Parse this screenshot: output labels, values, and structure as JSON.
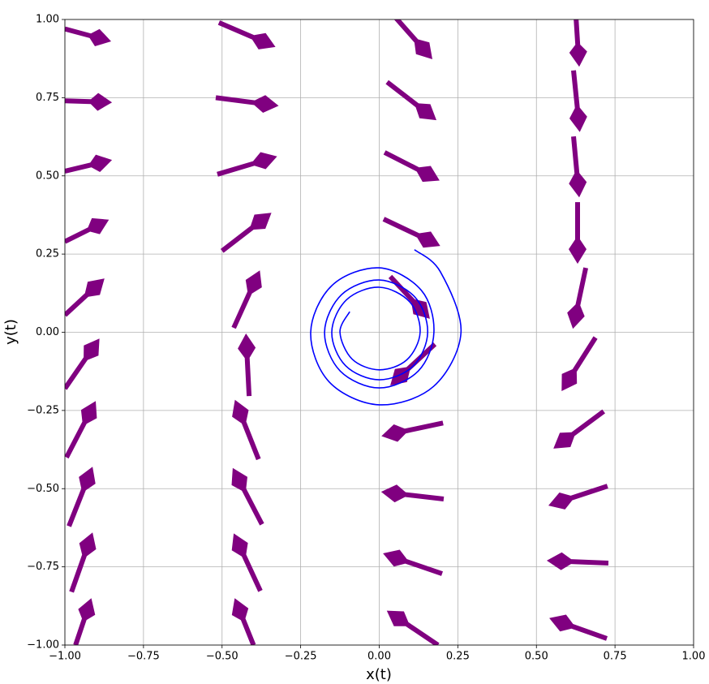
{
  "chart_data": {
    "type": "quiver",
    "xlabel": "x(t)",
    "ylabel": "y(t)",
    "xlim": [
      -1,
      1
    ],
    "ylim": [
      -1,
      1
    ],
    "xticks": [
      {
        "value": -1,
        "label": "−1.00"
      },
      {
        "value": -0.75,
        "label": "−0.75"
      },
      {
        "value": -0.5,
        "label": "−0.50"
      },
      {
        "value": -0.25,
        "label": "−0.25"
      },
      {
        "value": 0,
        "label": "0.00"
      },
      {
        "value": 0.25,
        "label": "0.25"
      },
      {
        "value": 0.5,
        "label": "0.50"
      },
      {
        "value": 0.75,
        "label": "0.75"
      },
      {
        "value": 1,
        "label": "1.00"
      }
    ],
    "yticks": [
      {
        "value": -1,
        "label": "−1.00"
      },
      {
        "value": -0.75,
        "label": "−0.75"
      },
      {
        "value": -0.5,
        "label": "−0.50"
      },
      {
        "value": -0.25,
        "label": "−0.25"
      },
      {
        "value": 0,
        "label": "0.00"
      },
      {
        "value": 0.25,
        "label": "0.25"
      },
      {
        "value": 0.5,
        "label": "0.50"
      },
      {
        "value": 0.75,
        "label": "0.75"
      },
      {
        "value": 1,
        "label": "1.00"
      }
    ],
    "grid": true,
    "arrows": {
      "color": "#800080",
      "x": [
        -1,
        -1,
        -1,
        -1,
        -1,
        -1,
        -0.995,
        -0.987,
        -0.979,
        -0.966,
        -0.51,
        -0.52,
        -0.515,
        -0.5,
        -0.463,
        -0.414,
        -0.384,
        -0.373,
        -0.378,
        -0.4,
        0.053,
        0.025,
        0.017,
        0.014,
        0.035,
        0.177,
        0.203,
        0.205,
        0.2,
        0.187,
        0.626,
        0.618,
        0.618,
        0.631,
        0.657,
        0.688,
        0.714,
        0.726,
        0.729,
        0.724
      ],
      "y": [
        0.97,
        0.74,
        0.515,
        0.29,
        0.055,
        -0.18,
        -0.4,
        -0.62,
        -0.83,
        -1.0,
        0.99,
        0.75,
        0.505,
        0.26,
        0.014,
        -0.204,
        -0.406,
        -0.614,
        -0.827,
        -1.0,
        1.005,
        0.8,
        0.575,
        0.362,
        0.178,
        -0.038,
        -0.29,
        -0.533,
        -0.772,
        -1.0,
        1.005,
        0.837,
        0.626,
        0.416,
        0.206,
        -0.017,
        -0.253,
        -0.492,
        -0.738,
        -0.979
      ],
      "u": [
        0.147,
        0.15,
        0.15,
        0.14,
        0.126,
        0.11,
        0.093,
        0.075,
        0.067,
        0.05,
        0.18,
        0.2,
        0.19,
        0.157,
        0.083,
        -0.01,
        -0.075,
        -0.093,
        -0.085,
        -0.06,
        0.116,
        0.157,
        0.175,
        0.18,
        0.126,
        -0.142,
        -0.196,
        -0.199,
        -0.188,
        -0.163,
        0.01,
        0.02,
        0.018,
        0,
        -0.041,
        -0.108,
        -0.16,
        -0.188,
        -0.196,
        -0.183
      ],
      "v": [
        -0.04,
        -0.005,
        0.036,
        0.07,
        0.117,
        0.16,
        0.18,
        0.19,
        0.19,
        0.15,
        -0.078,
        -0.026,
        0.057,
        0.122,
        0.184,
        0.2,
        0.19,
        0.18,
        0.184,
        0.15,
        -0.132,
        -0.122,
        -0.09,
        -0.086,
        -0.135,
        -0.132,
        -0.042,
        0.023,
        0.065,
        0.11,
        -0.156,
        -0.197,
        -0.195,
        -0.197,
        -0.195,
        -0.171,
        -0.119,
        -0.062,
        0.008,
        0.065
      ]
    },
    "trajectory": {
      "color": "#0000ff",
      "x": [
        0.112,
        0.194,
        0.26,
        0.173,
        0,
        -0.159,
        -0.218,
        -0.15,
        0,
        0.134,
        0.174,
        0.124,
        0,
        -0.124,
        -0.174,
        -0.12,
        0,
        0.113,
        0.154,
        0.108,
        0,
        -0.107,
        -0.151,
        -0.104,
        0,
        0.097,
        0.13,
        0.088,
        0,
        -0.086,
        -0.125,
        -0.094
      ],
      "y": [
        0.264,
        0.194,
        0,
        -0.173,
        -0.232,
        -0.159,
        0,
        0.15,
        0.206,
        0.134,
        0,
        -0.124,
        -0.178,
        -0.124,
        0,
        0.12,
        0.167,
        0.113,
        0,
        -0.108,
        -0.152,
        -0.107,
        0,
        0.104,
        0.144,
        0.097,
        0,
        -0.088,
        -0.12,
        -0.086,
        0,
        0.066
      ]
    }
  }
}
